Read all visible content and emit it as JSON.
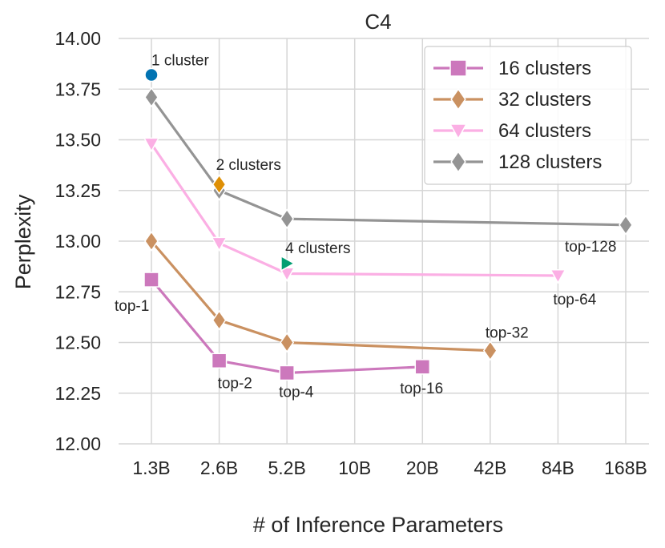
{
  "chart_data": {
    "type": "line",
    "title": "C4",
    "xlabel": "# of Inference Parameters",
    "ylabel": "Perplexity",
    "categories": [
      "1.3B",
      "2.6B",
      "5.2B",
      "10B",
      "20B",
      "42B",
      "84B",
      "168B"
    ],
    "ylim": [
      12.0,
      14.0
    ],
    "yticks": [
      "12.00",
      "12.25",
      "12.50",
      "12.75",
      "13.00",
      "13.25",
      "13.50",
      "13.75",
      "14.00"
    ],
    "grid": true,
    "legend_position": "top-right",
    "series": [
      {
        "name": "16 clusters",
        "color": "#cc78bc",
        "marker": "square",
        "points": [
          {
            "x": "1.3B",
            "y": 12.81,
            "label": "top-1"
          },
          {
            "x": "2.6B",
            "y": 12.41,
            "label": "top-2"
          },
          {
            "x": "5.2B",
            "y": 12.35,
            "label": "top-4"
          },
          {
            "x": "20B",
            "y": 12.38,
            "label": "top-16"
          }
        ]
      },
      {
        "name": "32 clusters",
        "color": "#ca9161",
        "marker": "diamond",
        "points": [
          {
            "x": "1.3B",
            "y": 13.0,
            "label": ""
          },
          {
            "x": "2.6B",
            "y": 12.61,
            "label": ""
          },
          {
            "x": "5.2B",
            "y": 12.5,
            "label": ""
          },
          {
            "x": "42B",
            "y": 12.46,
            "label": "top-32"
          }
        ]
      },
      {
        "name": "64 clusters",
        "color": "#fbafe4",
        "marker": "triangle-down",
        "points": [
          {
            "x": "1.3B",
            "y": 13.48,
            "label": ""
          },
          {
            "x": "2.6B",
            "y": 12.99,
            "label": ""
          },
          {
            "x": "5.2B",
            "y": 12.84,
            "label": ""
          },
          {
            "x": "84B",
            "y": 12.83,
            "label": "top-64"
          }
        ]
      },
      {
        "name": "128 clusters",
        "color": "#949494",
        "marker": "diamond",
        "points": [
          {
            "x": "1.3B",
            "y": 13.71,
            "label": ""
          },
          {
            "x": "2.6B",
            "y": 13.25,
            "label": ""
          },
          {
            "x": "5.2B",
            "y": 13.11,
            "label": ""
          },
          {
            "x": "168B",
            "y": 13.08,
            "label": "top-128"
          }
        ]
      }
    ],
    "single_points": [
      {
        "x": "1.3B",
        "y": 13.82,
        "label": "1 cluster",
        "color": "#0173b2",
        "marker": "circle"
      },
      {
        "x": "2.6B",
        "y": 13.28,
        "label": "2 clusters",
        "color": "#de8f05",
        "marker": "diamond"
      },
      {
        "x": "5.2B",
        "y": 12.89,
        "label": "4 clusters",
        "color": "#029e73",
        "marker": "triangle-right"
      }
    ]
  }
}
